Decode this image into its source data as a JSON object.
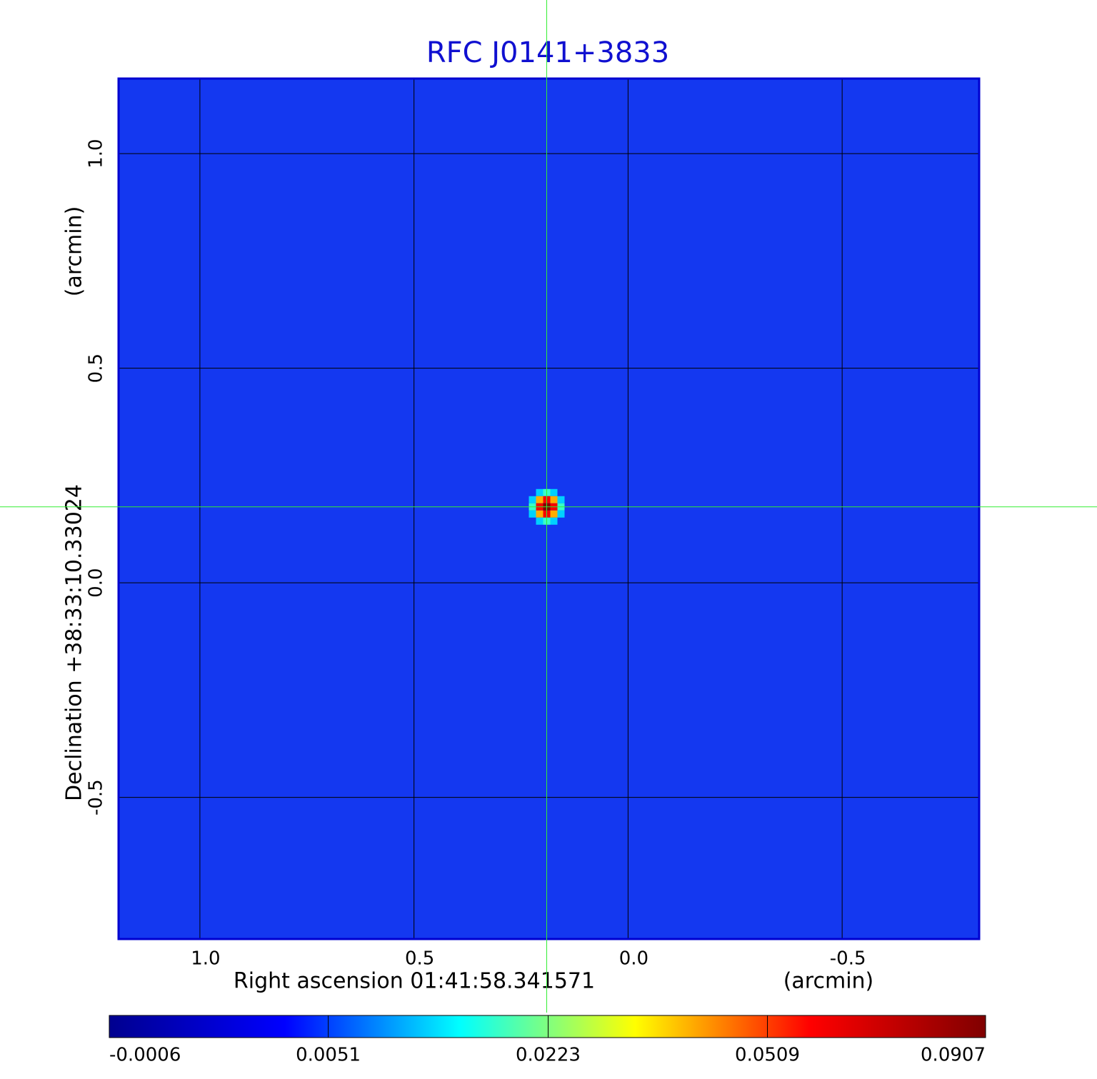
{
  "chart_data": {
    "type": "image",
    "title": "RFC J0141+3833",
    "x_label": "Right ascension  01:41:58.341571",
    "x_unit": "(arcmin)",
    "y_label": "Declination  +38:33:10.33024",
    "y_unit": "(arcmin)",
    "xlim": [
      1.19,
      -0.82
    ],
    "ylim": [
      -0.83,
      1.175
    ],
    "xticks": [
      {
        "value": 1,
        "label": "1.0"
      },
      {
        "value": 0.5,
        "label": "0.5"
      },
      {
        "value": 0,
        "label": "0.0"
      },
      {
        "value": -0.5,
        "label": "-0.5"
      }
    ],
    "yticks": [
      {
        "value": 1,
        "label": "1.0"
      },
      {
        "value": 0.5,
        "label": "0.5"
      },
      {
        "value": 0,
        "label": "0.0"
      },
      {
        "value": -0.5,
        "label": "-0.5"
      }
    ],
    "grid": true,
    "source": {
      "x": 0.19,
      "y": 0.177,
      "peak": 0.0907
    },
    "color_scale": "sqrt",
    "clim": [
      -0.0006,
      0.0907
    ],
    "cticks": [
      -0.0006,
      0.0051,
      0.0223,
      0.0509,
      0.0907
    ],
    "colormap": [
      "#00008f",
      "#0000ff",
      "#00ffff",
      "#ffff00",
      "#ff0000",
      "#800000"
    ]
  }
}
